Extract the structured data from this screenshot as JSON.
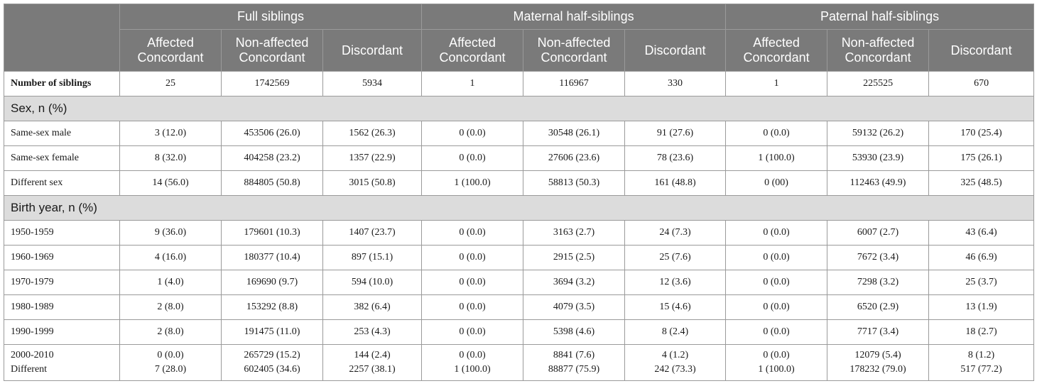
{
  "groups": [
    "Full siblings",
    "Maternal half-siblings",
    "Paternal half-siblings"
  ],
  "subheaders": [
    "Affected Concordant",
    "Non-affected Concordant",
    "Discordant"
  ],
  "number_row": {
    "label": "Number of siblings",
    "values": [
      "25",
      "1742569",
      "5934",
      "1",
      "116967",
      "330",
      "1",
      "225525",
      "670"
    ]
  },
  "sections": [
    {
      "title": "Sex, n (%)",
      "rows": [
        {
          "label": "Same-sex male",
          "values": [
            "3 (12.0)",
            "453506 (26.0)",
            "1562 (26.3)",
            "0 (0.0)",
            "30548 (26.1)",
            "91 (27.6)",
            "0 (0.0)",
            "59132 (26.2)",
            "170 (25.4)"
          ]
        },
        {
          "label": "Same-sex female",
          "values": [
            "8 (32.0)",
            "404258 (23.2)",
            "1357 (22.9)",
            "0 (0.0)",
            "27606 (23.6)",
            "78 (23.6)",
            "1 (100.0)",
            "53930 (23.9)",
            "175 (26.1)"
          ]
        },
        {
          "label": "Different sex",
          "values": [
            "14 (56.0)",
            "884805 (50.8)",
            "3015 (50.8)",
            "1 (100.0)",
            "58813 (50.3)",
            "161 (48.8)",
            "0 (00)",
            "112463 (49.9)",
            "325 (48.5)"
          ]
        }
      ]
    },
    {
      "title": "Birth year, n (%)",
      "rows": [
        {
          "label": "1950-1959",
          "values": [
            "9 (36.0)",
            "179601 (10.3)",
            "1407 (23.7)",
            "0 (0.0)",
            "3163 (2.7)",
            "24 (7.3)",
            "0 (0.0)",
            "6007 (2.7)",
            "43 (6.4)"
          ]
        },
        {
          "label": "1960-1969",
          "values": [
            "4 (16.0)",
            "180377 (10.4)",
            "897 (15.1)",
            "0 (0.0)",
            "2915 (2.5)",
            "25 (7.6)",
            "0 (0.0)",
            "7672 (3.4)",
            "46 (6.9)"
          ]
        },
        {
          "label": "1970-1979",
          "values": [
            "1 (4.0)",
            "169690 (9.7)",
            "594 (10.0)",
            "0 (0.0)",
            "3694 (3.2)",
            "12 (3.6)",
            "0 (0.0)",
            "7298 (3.2)",
            "25 (3.7)"
          ]
        },
        {
          "label": "1980-1989",
          "values": [
            "2 (8.0)",
            "153292 (8.8)",
            "382 (6.4)",
            "0 (0.0)",
            "4079 (3.5)",
            "15 (4.6)",
            "0 (0.0)",
            "6520 (2.9)",
            "13 (1.9)"
          ]
        },
        {
          "label": "1990-1999",
          "values": [
            "2 (8.0)",
            "191475 (11.0)",
            "253 (4.3)",
            "0 (0.0)",
            "5398 (4.6)",
            "8 (2.4)",
            "0 (0.0)",
            "7717 (3.4)",
            "18 (2.7)"
          ]
        }
      ]
    }
  ],
  "last_row": {
    "labels": [
      "2000-2010",
      "Different"
    ],
    "values": [
      [
        "0 (0.0)",
        "7 (28.0)"
      ],
      [
        "265729 (15.2)",
        "602405 (34.6)"
      ],
      [
        "144 (2.4)",
        "2257 (38.1)"
      ],
      [
        "0 (0.0)",
        "1 (100.0)"
      ],
      [
        "8841 (7.6)",
        "88877 (75.9)"
      ],
      [
        "4 (1.2)",
        "242 (73.3)"
      ],
      [
        "0 (0.0)",
        "1 (100.0)"
      ],
      [
        "12079 (5.4)",
        "178232 (79.0)"
      ],
      [
        "8 (1.2)",
        "517 (77.2)"
      ]
    ]
  },
  "colors": {
    "header_bg": "#7a7a7a",
    "header_text": "#ffffff",
    "section_bg": "#dcdcdc",
    "border": "#9a9a9a"
  }
}
